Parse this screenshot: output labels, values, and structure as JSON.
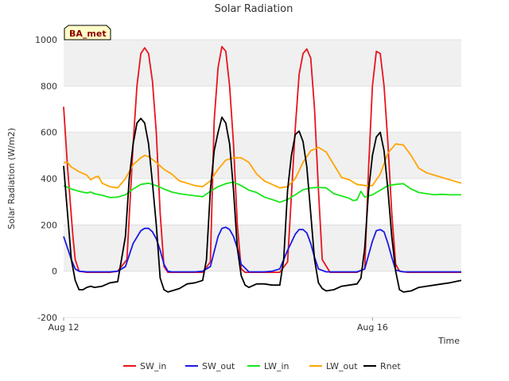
{
  "chart_data": {
    "type": "line",
    "title": "Solar Radiation",
    "xlabel": "Time",
    "ylabel": "Solar Radiation (W/m2)",
    "ylim": [
      -200,
      1000
    ],
    "yticks": [
      -200,
      0,
      200,
      400,
      600,
      800,
      1000
    ],
    "xlim": [
      0,
      5.15
    ],
    "xticks": [
      {
        "value": 0,
        "label": "Aug 12"
      },
      {
        "value": 4,
        "label": "Aug 16"
      }
    ],
    "x_unit": "days since Aug 12",
    "grid": true,
    "legend_position": "bottom",
    "site_badge": "BA_met",
    "series": [
      {
        "name": "SW_in",
        "color": "#e8141d",
        "x": [
          0.0,
          0.05,
          0.12,
          0.15,
          0.2,
          0.3,
          0.4,
          0.6,
          0.7,
          0.82,
          0.9,
          0.95,
          1.0,
          1.05,
          1.1,
          1.15,
          1.2,
          1.25,
          1.3,
          1.35,
          1.4,
          1.5,
          1.6,
          1.8,
          1.9,
          1.95,
          2.0,
          2.05,
          2.1,
          2.15,
          2.2,
          2.25,
          2.3,
          2.35,
          2.45,
          2.6,
          2.8,
          2.9,
          3.0,
          3.05,
          3.1,
          3.15,
          3.2,
          3.25,
          3.3,
          3.35,
          3.45,
          3.6,
          3.8,
          3.9,
          3.95,
          4.0,
          4.05,
          4.1,
          4.15,
          4.2,
          4.25,
          4.3,
          4.35,
          4.45,
          4.6,
          4.8,
          5.15
        ],
        "y": [
          710,
          450,
          150,
          50,
          0,
          -5,
          -5,
          -5,
          0,
          50,
          550,
          800,
          940,
          965,
          940,
          820,
          600,
          250,
          20,
          -5,
          -5,
          -5,
          -5,
          -5,
          40,
          650,
          880,
          970,
          950,
          800,
          550,
          200,
          10,
          -5,
          -5,
          -5,
          -5,
          40,
          620,
          850,
          940,
          960,
          920,
          700,
          350,
          50,
          -5,
          -5,
          -5,
          10,
          450,
          800,
          950,
          940,
          800,
          550,
          250,
          30,
          0,
          -5,
          -5,
          -5,
          -5
        ]
      },
      {
        "name": "SW_out",
        "color": "#1a1ae8",
        "x": [
          0.0,
          0.05,
          0.1,
          0.15,
          0.2,
          0.3,
          0.4,
          0.6,
          0.7,
          0.8,
          0.9,
          1.0,
          1.05,
          1.1,
          1.15,
          1.2,
          1.25,
          1.3,
          1.35,
          1.4,
          1.5,
          1.7,
          1.8,
          1.9,
          2.0,
          2.05,
          2.1,
          2.15,
          2.2,
          2.25,
          2.3,
          2.4,
          2.6,
          2.7,
          2.8,
          2.9,
          3.0,
          3.05,
          3.1,
          3.15,
          3.2,
          3.25,
          3.3,
          3.4,
          3.6,
          3.8,
          3.9,
          4.0,
          4.05,
          4.1,
          4.15,
          4.2,
          4.25,
          4.3,
          4.4,
          4.6,
          5.15
        ],
        "y": [
          150,
          100,
          50,
          10,
          0,
          -3,
          -3,
          -3,
          0,
          20,
          120,
          175,
          185,
          185,
          170,
          140,
          90,
          30,
          0,
          -3,
          -3,
          -3,
          0,
          20,
          150,
          185,
          190,
          180,
          150,
          100,
          30,
          -3,
          -3,
          0,
          10,
          90,
          160,
          180,
          180,
          165,
          120,
          60,
          10,
          -3,
          -3,
          -3,
          10,
          130,
          175,
          180,
          170,
          120,
          60,
          5,
          -3,
          -3,
          -3
        ]
      },
      {
        "name": "LW_in",
        "color": "#19e619",
        "x": [
          0.0,
          0.1,
          0.2,
          0.3,
          0.35,
          0.4,
          0.5,
          0.6,
          0.7,
          0.8,
          0.9,
          1.0,
          1.1,
          1.2,
          1.3,
          1.4,
          1.5,
          1.6,
          1.7,
          1.8,
          1.9,
          2.0,
          2.1,
          2.2,
          2.3,
          2.4,
          2.5,
          2.6,
          2.7,
          2.8,
          2.9,
          3.0,
          3.1,
          3.2,
          3.3,
          3.4,
          3.5,
          3.6,
          3.7,
          3.75,
          3.8,
          3.85,
          3.9,
          4.0,
          4.1,
          4.2,
          4.3,
          4.4,
          4.5,
          4.6,
          4.7,
          4.8,
          4.9,
          5.0,
          5.15
        ],
        "y": [
          370,
          355,
          345,
          338,
          342,
          335,
          328,
          318,
          320,
          330,
          355,
          375,
          380,
          370,
          355,
          342,
          335,
          330,
          326,
          322,
          345,
          365,
          378,
          385,
          370,
          350,
          340,
          320,
          310,
          298,
          310,
          330,
          352,
          360,
          362,
          360,
          335,
          325,
          315,
          305,
          308,
          345,
          320,
          330,
          350,
          370,
          375,
          378,
          355,
          340,
          335,
          330,
          332,
          330,
          330
        ]
      },
      {
        "name": "LW_out",
        "color": "#ffa500",
        "x": [
          0.0,
          0.05,
          0.1,
          0.2,
          0.3,
          0.35,
          0.4,
          0.45,
          0.5,
          0.6,
          0.7,
          0.8,
          0.9,
          1.0,
          1.05,
          1.1,
          1.2,
          1.3,
          1.4,
          1.5,
          1.6,
          1.7,
          1.8,
          1.9,
          2.0,
          2.1,
          2.2,
          2.3,
          2.4,
          2.5,
          2.6,
          2.7,
          2.8,
          2.9,
          3.0,
          3.1,
          3.2,
          3.3,
          3.4,
          3.5,
          3.6,
          3.7,
          3.8,
          3.9,
          4.0,
          4.1,
          4.2,
          4.3,
          4.4,
          4.5,
          4.6,
          4.7,
          4.8,
          5.15
        ],
        "y": [
          470,
          470,
          450,
          430,
          415,
          395,
          405,
          410,
          380,
          365,
          360,
          400,
          460,
          490,
          500,
          495,
          470,
          440,
          420,
          390,
          380,
          370,
          365,
          390,
          440,
          480,
          490,
          490,
          470,
          420,
          390,
          375,
          360,
          365,
          400,
          470,
          520,
          535,
          515,
          460,
          405,
          395,
          375,
          370,
          370,
          420,
          510,
          550,
          545,
          500,
          445,
          425,
          415,
          380
        ]
      },
      {
        "name": "Rnet",
        "color": "#000000",
        "x": [
          0.0,
          0.05,
          0.1,
          0.15,
          0.2,
          0.25,
          0.3,
          0.35,
          0.4,
          0.5,
          0.6,
          0.7,
          0.8,
          0.85,
          0.9,
          0.95,
          1.0,
          1.05,
          1.1,
          1.15,
          1.2,
          1.25,
          1.3,
          1.35,
          1.4,
          1.5,
          1.6,
          1.7,
          1.8,
          1.85,
          1.9,
          1.95,
          2.0,
          2.05,
          2.1,
          2.15,
          2.2,
          2.25,
          2.3,
          2.35,
          2.4,
          2.5,
          2.6,
          2.7,
          2.8,
          2.85,
          2.9,
          2.95,
          3.0,
          3.05,
          3.1,
          3.15,
          3.2,
          3.25,
          3.3,
          3.35,
          3.4,
          3.5,
          3.6,
          3.7,
          3.8,
          3.85,
          3.9,
          3.95,
          4.0,
          4.05,
          4.1,
          4.15,
          4.2,
          4.25,
          4.3,
          4.35,
          4.4,
          4.5,
          4.6,
          4.7,
          4.8,
          4.9,
          5.0,
          5.15
        ],
        "y": [
          455,
          250,
          50,
          -40,
          -80,
          -80,
          -70,
          -65,
          -70,
          -65,
          -50,
          -45,
          150,
          400,
          550,
          640,
          660,
          640,
          550,
          380,
          200,
          -30,
          -80,
          -90,
          -85,
          -75,
          -55,
          -50,
          -40,
          50,
          350,
          520,
          600,
          665,
          640,
          550,
          350,
          100,
          -20,
          -60,
          -70,
          -55,
          -55,
          -60,
          -60,
          50,
          350,
          500,
          590,
          605,
          560,
          450,
          250,
          50,
          -50,
          -75,
          -85,
          -80,
          -65,
          -60,
          -55,
          -30,
          100,
          350,
          500,
          580,
          600,
          520,
          350,
          150,
          0,
          -80,
          -90,
          -85,
          -70,
          -65,
          -60,
          -55,
          -50,
          -40
        ]
      }
    ]
  }
}
